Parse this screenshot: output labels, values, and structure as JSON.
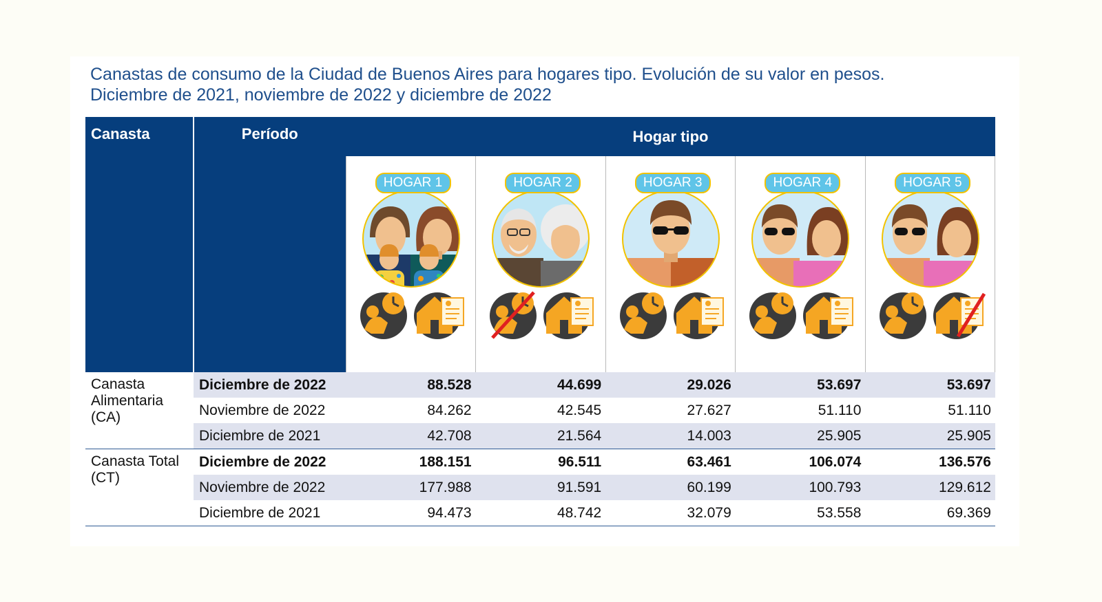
{
  "title": {
    "line1": "Canastas de consumo de la Ciudad de Buenos Aires para hogares tipo. Evolución de su valor en pesos.",
    "line2": "Diciembre de 2021, noviembre de 2022 y diciembre de 2022"
  },
  "header": {
    "canasta": "Canasta",
    "periodo": "Período",
    "hogar_tipo": "Hogar tipo"
  },
  "hogares": [
    {
      "label": "HOGAR 1",
      "icon": "family-four-icon"
    },
    {
      "label": "HOGAR 2",
      "icon": "elderly-couple-icon"
    },
    {
      "label": "HOGAR 3",
      "icon": "single-man-icon"
    },
    {
      "label": "HOGAR 4",
      "icon": "couple-icon"
    },
    {
      "label": "HOGAR 5",
      "icon": "couple-icon"
    }
  ],
  "groups": [
    {
      "name": "Canasta Alimentaria (CA)",
      "rows": [
        {
          "periodo": "Diciembre de 2022",
          "values": [
            "88.528",
            "44.699",
            "29.026",
            "53.697",
            "53.697"
          ]
        },
        {
          "periodo": "Noviembre de 2022",
          "values": [
            "84.262",
            "42.545",
            "27.627",
            "51.110",
            "51.110"
          ]
        },
        {
          "periodo": "Diciembre de 2021",
          "values": [
            "42.708",
            "21.564",
            "14.003",
            "25.905",
            "25.905"
          ]
        }
      ]
    },
    {
      "name": "Canasta Total (CT)",
      "rows": [
        {
          "periodo": "Diciembre de 2022",
          "values": [
            "188.151",
            "96.511",
            "63.461",
            "106.074",
            "136.576"
          ]
        },
        {
          "periodo": "Noviembre de 2022",
          "values": [
            "177.988",
            "91.591",
            "60.199",
            "100.793",
            "129.612"
          ]
        },
        {
          "periodo": "Diciembre de 2021",
          "values": [
            "94.473",
            "48.742",
            "32.079",
            "53.558",
            "69.369"
          ]
        }
      ]
    }
  ],
  "colors": {
    "header_bg": "#063e7d",
    "title": "#1f4f8c",
    "row_shade": "#dfe2ee",
    "badge": "#5fc4e8",
    "badge_border": "#f2c200"
  }
}
